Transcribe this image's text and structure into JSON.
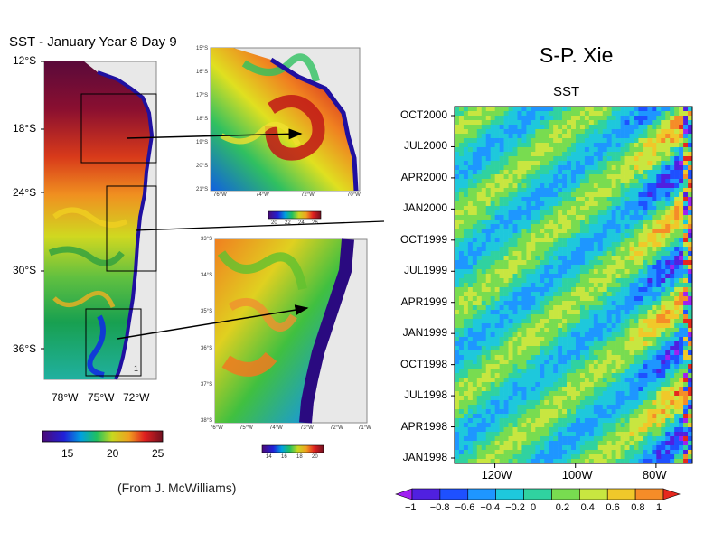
{
  "title": "SST - January Year 8 Day 9",
  "author": "S-P. Xie",
  "credit": "(From J. McWilliams)",
  "left_map": {
    "lat_labels": [
      {
        "text": "12°S",
        "value": -12
      },
      {
        "text": "18°S",
        "value": -18
      },
      {
        "text": "24°S",
        "value": -24
      },
      {
        "text": "30°S",
        "value": -30
      },
      {
        "text": "36°S",
        "value": -36
      }
    ],
    "lon_labels": [
      "78°W",
      "75°W",
      "72°W"
    ],
    "corner_label": "1",
    "colorbar_labels": [
      "15",
      "20",
      "25"
    ],
    "colorbar_range": [
      12,
      26
    ]
  },
  "zoom_top": {
    "lat_labels": [
      "15°S",
      "16°S",
      "17°S",
      "18°S",
      "19°S",
      "20°S",
      "21°S"
    ],
    "lon_labels": [
      "76°W",
      "74°W",
      "72°W",
      "70°W"
    ],
    "colorbar_labels": [
      "20",
      "22",
      "24",
      "26"
    ]
  },
  "zoom_bottom": {
    "lat_labels": [
      "33°S",
      "34°S",
      "35°S",
      "36°S",
      "37°S",
      "38°S"
    ],
    "lon_labels": [
      "76°W",
      "75°W",
      "74°W",
      "73°W",
      "72°W",
      "71°W"
    ],
    "colorbar_labels": [
      "14",
      "16",
      "18",
      "20"
    ]
  },
  "chart_data": {
    "type": "heatmap",
    "title": "SST",
    "y_labels": [
      "OCT2000",
      "JUL2000",
      "APR2000",
      "JAN2000",
      "OCT1999",
      "JUL1999",
      "APR1999",
      "JAN1999",
      "OCT1998",
      "JUL1998",
      "APR1998",
      "JAN1998"
    ],
    "x_labels": [
      "120W",
      "100W",
      "80W"
    ],
    "x_range": [
      -130,
      -71
    ],
    "y_range": [
      "1998-01",
      "2000-12"
    ],
    "colorbar_labels": [
      "−1",
      "−0.8",
      "−0.6",
      "−0.4",
      "−0.2",
      "0",
      "0.2",
      "0.4",
      "0.6",
      "0.8",
      "1"
    ],
    "colorbar_range": [
      -1,
      1
    ],
    "colorbar_colors": [
      "#a020f0",
      "#5020e0",
      "#1e50ff",
      "#1e96ff",
      "#1ec8dc",
      "#30d2a0",
      "#78dc50",
      "#c8e640",
      "#f0c82a",
      "#f58c28",
      "#e6281e"
    ]
  },
  "colors": {
    "arrow": "#000000",
    "land": "#e8e8e8"
  }
}
